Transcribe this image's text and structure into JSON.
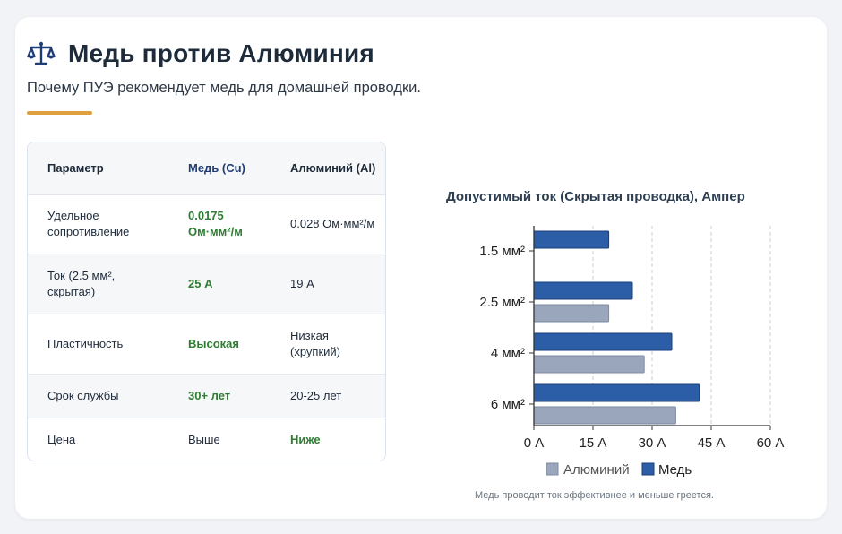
{
  "header": {
    "title": "Медь против Алюминия",
    "subtitle": "Почему ПУЭ рекомендует медь для домашней проводки.",
    "icon": "scale-balance-icon",
    "accent_color": "#e0a040"
  },
  "table": {
    "columns": [
      "Параметр",
      "Медь (Cu)",
      "Алюминий (Al)"
    ],
    "rows": [
      {
        "param": "Удельное сопротивление",
        "cu": "0.0175 Ом·мм²/м",
        "al": "0.028 Ом·мм²/м",
        "better": "cu"
      },
      {
        "param": "Ток (2.5 мм², скрытая)",
        "cu": "25 А",
        "al": "19 А",
        "better": "cu"
      },
      {
        "param": "Пластичность",
        "cu": "Высокая",
        "al": "Низкая (хрупкий)",
        "better": "cu"
      },
      {
        "param": "Срок службы",
        "cu": "30+ лет",
        "al": "20-25 лет",
        "better": "cu"
      },
      {
        "param": "Цена",
        "cu": "Выше",
        "al": "Ниже",
        "better": "al"
      }
    ]
  },
  "chart_data": {
    "type": "bar",
    "orientation": "horizontal",
    "title": "Допустимый ток (Скрытая проводка), Ампер",
    "categories": [
      "1.5 мм²",
      "2.5 мм²",
      "4 мм²",
      "6 мм²"
    ],
    "series": [
      {
        "name": "Медь",
        "values": [
          19,
          25,
          35,
          42
        ],
        "color": "#2c5ea8"
      },
      {
        "name": "Алюминий",
        "values": [
          null,
          19,
          28,
          36
        ],
        "color": "#9aa6bb"
      }
    ],
    "xlim": [
      0,
      60
    ],
    "xticks": [
      0,
      15,
      30,
      45,
      60
    ],
    "xtick_labels": [
      "0 А",
      "15 А",
      "30 А",
      "45 А",
      "60 А"
    ],
    "grid": "vertical dashed",
    "legend": [
      "Алюминий",
      "Медь"
    ],
    "legend_position": "bottom"
  },
  "footnote": "Медь проводит ток эффективнее и меньше греется."
}
